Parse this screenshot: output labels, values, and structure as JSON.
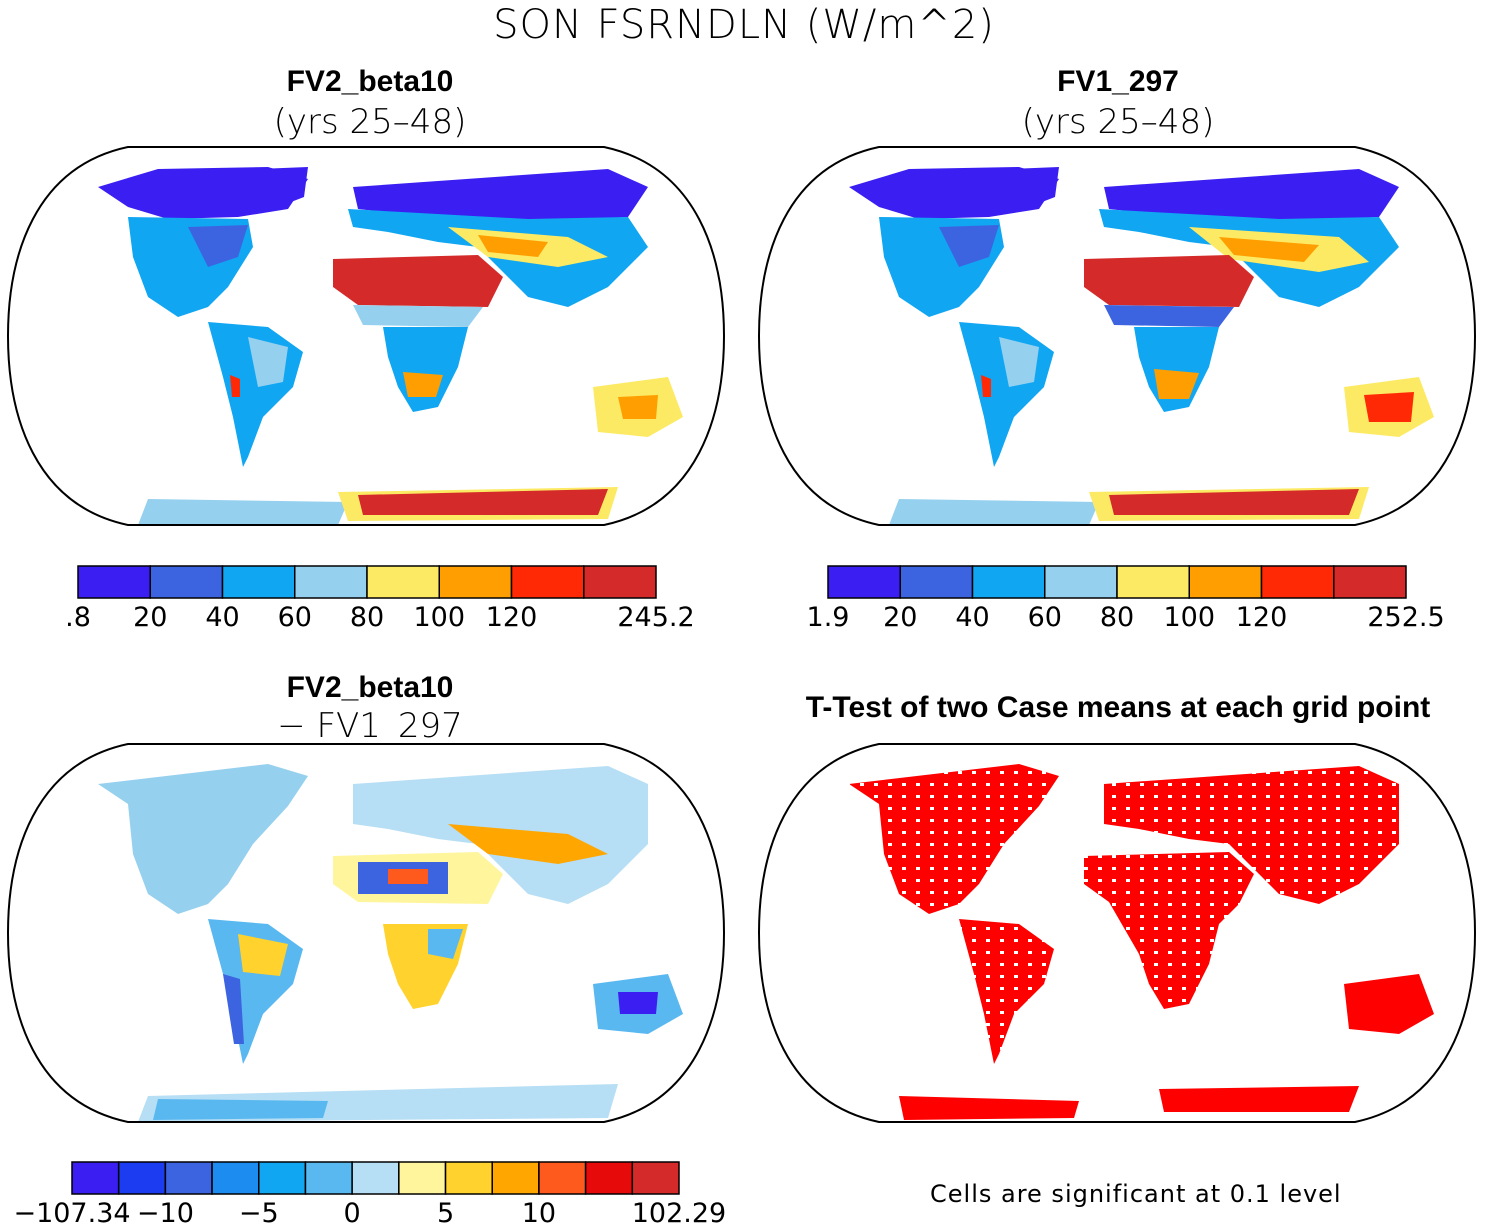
{
  "figure": {
    "title": "SON FSRNDLN (W/m^2)"
  },
  "panels": {
    "top_left": {
      "title": "FV2_beta10",
      "subtitle": "(yrs 25–48)",
      "colorbar": {
        "colors": [
          "#3b1ff2",
          "#3c64e0",
          "#10a6f2",
          "#96d0ef",
          "#fcea64",
          "#ff9e00",
          "#ff2a05",
          "#d42a2a"
        ],
        "labels": [
          ".8",
          "20",
          "40",
          "60",
          "80",
          "100",
          "120",
          "",
          "245.2"
        ]
      }
    },
    "top_right": {
      "title": "FV1_297",
      "subtitle": "(yrs 25–48)",
      "colorbar": {
        "colors": [
          "#3b1ff2",
          "#3c64e0",
          "#10a6f2",
          "#96d0ef",
          "#fcea64",
          "#ff9e00",
          "#ff2a05",
          "#d42a2a"
        ],
        "labels": [
          "1.9",
          "20",
          "40",
          "60",
          "80",
          "100",
          "120",
          "",
          "252.5"
        ]
      }
    },
    "bottom_left": {
      "title": "FV2_beta10",
      "subtitle": "− FV1_297",
      "colorbar": {
        "colors": [
          "#3b1ff2",
          "#1b3cf0",
          "#3c64e0",
          "#1c8cf0",
          "#10a6f2",
          "#5ab8f0",
          "#b6def4",
          "#fff59c",
          "#ffd22d",
          "#ffa600",
          "#ff5a1e",
          "#e60a0a",
          "#d42a2a"
        ],
        "labels": [
          "−107.34",
          "",
          "−10",
          "",
          "−5",
          "",
          "0",
          "",
          "5",
          "",
          "10",
          "",
          "",
          "102.29"
        ]
      }
    },
    "bottom_right": {
      "title": "T-Test of two Case means at each grid point",
      "note": "Cells are significant at 0.1 level"
    }
  },
  "colors": {
    "ocean": "#ffffff",
    "coast": "#000000",
    "significant": "#ff0000"
  }
}
